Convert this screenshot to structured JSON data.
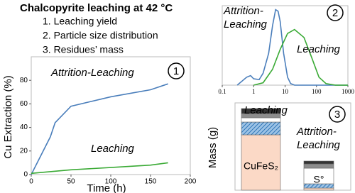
{
  "header": {
    "title": "Chalcopyrite leaching at 42 °C",
    "items": [
      "1. Leaching yield",
      "2. Particle size distribution",
      "3. Residues’ mass"
    ]
  },
  "chart_data": [
    {
      "type": "line",
      "badge": "1",
      "x_label": "Time (h)",
      "y_label": "Cu Extraction (%)",
      "xlim": [
        0,
        200
      ],
      "xticks": [
        0,
        50,
        100,
        150,
        200
      ],
      "ylim": [
        0,
        100
      ],
      "yticks": [
        0,
        20,
        40,
        60,
        80
      ],
      "series": [
        {
          "name": "Attrition-Leaching",
          "color": "#4a7ebb",
          "x": [
            0,
            24,
            30,
            50,
            100,
            150,
            172
          ],
          "values": [
            0,
            32,
            44,
            58,
            66,
            72,
            77
          ]
        },
        {
          "name": "Leaching",
          "color": "#3aaa35",
          "x": [
            0,
            50,
            100,
            150,
            172
          ],
          "values": [
            1,
            4,
            6,
            8,
            10
          ]
        }
      ]
    },
    {
      "type": "line",
      "badge": "2",
      "log_x": true,
      "xlim": [
        0.1,
        1000
      ],
      "xticks": [
        0.1,
        1,
        10,
        100,
        1000
      ],
      "ylim": [
        0,
        10
      ],
      "series": [
        {
          "name": "Attrition-Leaching",
          "color": "#4a7ebb",
          "x": [
            0.3,
            0.6,
            0.8,
            1,
            1.5,
            2,
            3,
            4,
            5,
            6,
            7,
            9,
            12,
            15,
            20,
            1000
          ],
          "values": [
            0,
            1,
            1.2,
            0.8,
            0.7,
            1.5,
            4,
            7.5,
            9.5,
            9.3,
            8,
            4,
            1,
            0.2,
            0,
            0
          ]
        },
        {
          "name": "Leaching",
          "color": "#3aaa35",
          "x": [
            1,
            2,
            4,
            7,
            12,
            20,
            40,
            70,
            120,
            200,
            400,
            1000
          ],
          "values": [
            0,
            0.3,
            2,
            4.5,
            6.5,
            7,
            6,
            3.5,
            1,
            0.2,
            0,
            0
          ]
        }
      ]
    },
    {
      "type": "bar",
      "badge": "3",
      "y_label": "Mass (g)",
      "stacked": true,
      "ylim": [
        0,
        120
      ],
      "categories": [
        "Leaching",
        "Attrition-Leaching"
      ],
      "category_colors": [
        "#3aaa35",
        "#4a7ebb"
      ],
      "series": [
        {
          "name": "CuFeS₂",
          "color": "#fbd9c6",
          "values": [
            78,
            3
          ]
        },
        {
          "color": "#5b9bd5",
          "pattern": "hatch",
          "values": [
            18,
            6
          ]
        },
        {
          "name": "S°",
          "color": "#ffffff",
          "values": [
            6,
            22
          ]
        },
        {
          "color": "#8c8c8c",
          "values": [
            6,
            6
          ]
        },
        {
          "color": "#333333",
          "values": [
            7,
            4
          ]
        }
      ]
    }
  ]
}
